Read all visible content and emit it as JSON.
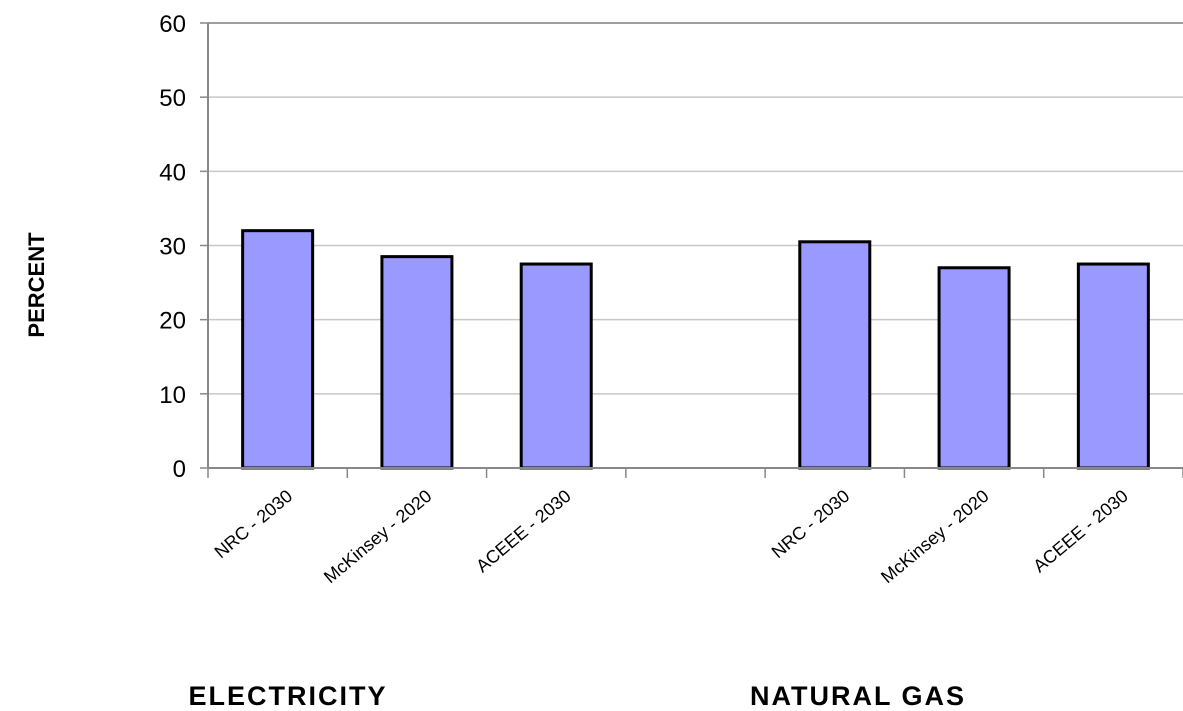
{
  "chart_data": {
    "type": "bar",
    "ylabel": "PERCENT",
    "ylim": [
      0,
      60
    ],
    "yticks": [
      0,
      10,
      20,
      30,
      40,
      50,
      60
    ],
    "grid": true,
    "groups": [
      {
        "label": "ELECTRICITY",
        "categories": [
          "NRC - 2030",
          "McKinsey - 2020",
          "ACEEE - 2030"
        ],
        "values": [
          32,
          28.5,
          27.5
        ]
      },
      {
        "label": "NATURAL GAS",
        "categories": [
          "NRC - 2030",
          "McKinsey - 2020",
          "ACEEE - 2030"
        ],
        "values": [
          30.5,
          27,
          27.5
        ]
      }
    ],
    "bar_color": "#9999ff"
  }
}
